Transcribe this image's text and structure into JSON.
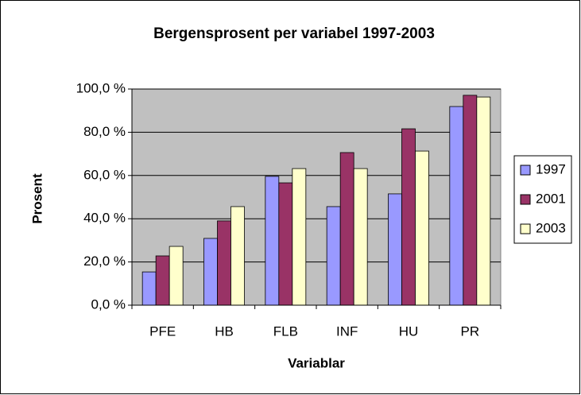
{
  "chart_data": {
    "type": "bar",
    "title": "Bergensprosent per variabel 1997-2003",
    "x_label": "Variablar",
    "y_label": "Prosent",
    "categories": [
      "PFE",
      "HB",
      "FLB",
      "INF",
      "HU",
      "PR"
    ],
    "series": [
      {
        "name": "1997",
        "color": "#9999ff",
        "values": [
          15.4,
          30.9,
          59.6,
          45.6,
          51.5,
          91.9
        ]
      },
      {
        "name": "2001",
        "color": "#993366",
        "values": [
          22.8,
          39.0,
          56.6,
          70.6,
          81.6,
          97.1
        ]
      },
      {
        "name": "2003",
        "color": "#ffffcc",
        "values": [
          27.2,
          45.6,
          63.2,
          63.2,
          71.3,
          96.3
        ]
      }
    ],
    "ylim": [
      0,
      100
    ],
    "yticks": [
      {
        "value": 0,
        "label": "0,0 %"
      },
      {
        "value": 20,
        "label": "20,0 %"
      },
      {
        "value": 40,
        "label": "40,0 %"
      },
      {
        "value": 60,
        "label": "60,0 %"
      },
      {
        "value": 80,
        "label": "80,0 %"
      },
      {
        "value": 100,
        "label": "100,0 %"
      }
    ],
    "grid": true,
    "legend": "right"
  }
}
